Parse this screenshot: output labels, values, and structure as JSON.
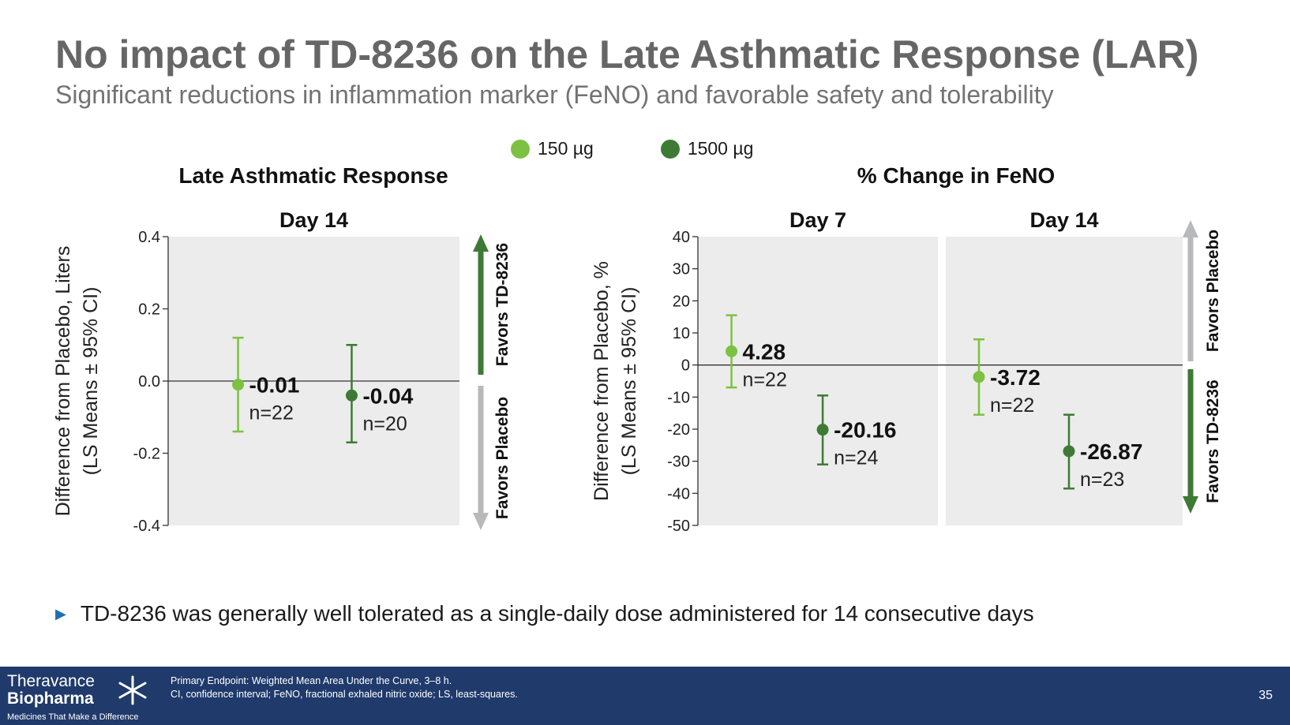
{
  "slide": {
    "title": "No impact of TD-8236 on the Late Asthmatic Response (LAR)",
    "subtitle": "Significant reductions in inflammation marker (FeNO) and favorable safety and tolerability"
  },
  "legend": [
    {
      "label": "150 µg",
      "color": "#7dc142"
    },
    {
      "label": "1500 µg",
      "color": "#3e7a35"
    }
  ],
  "chart_data": [
    {
      "type": "scatter",
      "title": "Late Asthmatic Response",
      "panels": [
        "Day 14"
      ],
      "ylabel": "Difference from Placebo, Liters",
      "ylabel2": "(LS Means ± 95% CI)",
      "ylim": [
        -0.4,
        0.4
      ],
      "yticks": [
        "0.4",
        "0.2",
        "0.0",
        "-0.2",
        "-0.4"
      ],
      "arrow_up_label": "Favors TD-8236",
      "arrow_down_label": "Favors Placebo",
      "series": [
        {
          "name": "150 µg",
          "panel": 0,
          "value": -0.01,
          "ci": [
            -0.14,
            0.12
          ],
          "label": "-0.01",
          "n": "n=22"
        },
        {
          "name": "1500 µg",
          "panel": 0,
          "value": -0.04,
          "ci": [
            -0.17,
            0.1
          ],
          "label": "-0.04",
          "n": "n=20"
        }
      ]
    },
    {
      "type": "scatter",
      "title": "% Change in FeNO",
      "panels": [
        "Day 7",
        "Day 14"
      ],
      "ylabel": "Difference from Placebo, %",
      "ylabel2": "(LS Means ± 95% CI)",
      "ylim": [
        -50,
        40
      ],
      "yticks": [
        "40",
        "30",
        "20",
        "10",
        "0",
        "-10",
        "-20",
        "-30",
        "-40",
        "-50"
      ],
      "arrow_up_label": "Favors Placebo",
      "arrow_down_label": "Favors TD-8236",
      "series": [
        {
          "name": "150 µg",
          "panel": 0,
          "value": 4.28,
          "ci": [
            -7.0,
            15.5
          ],
          "label": "4.28",
          "n": "n=22"
        },
        {
          "name": "1500 µg",
          "panel": 0,
          "value": -20.16,
          "ci": [
            -31.0,
            -9.5
          ],
          "label": "-20.16",
          "n": "n=24"
        },
        {
          "name": "150 µg",
          "panel": 1,
          "value": -3.72,
          "ci": [
            -15.5,
            8.0
          ],
          "label": "-3.72",
          "n": "n=22"
        },
        {
          "name": "1500 µg",
          "panel": 1,
          "value": -26.87,
          "ci": [
            -38.5,
            -15.5
          ],
          "label": "-26.87",
          "n": "n=23"
        }
      ]
    }
  ],
  "bullet": "TD-8236 was generally well tolerated as a single-daily dose administered for 14 consecutive days",
  "footer": {
    "logo_line1": "Theravance",
    "logo_line2": "Biopharma",
    "logo_tagline": "Medicines That Make a Difference",
    "note1": "Primary Endpoint: Weighted Mean Area Under the Curve, 3–8 h.",
    "note2": "CI, confidence interval; FeNO, fractional exhaled nitric oxide; LS, least-squares.",
    "page": "35"
  },
  "colors": {
    "panel_bg": "#ebeceb",
    "series_light": "#7dc142",
    "series_dark": "#3e7a35",
    "arrow_gray": "#b8b9bb",
    "footer_bg": "#1f3a6b"
  }
}
